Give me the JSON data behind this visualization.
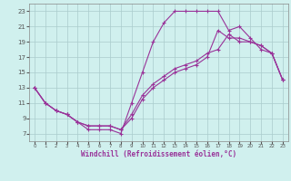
{
  "xlabel": "Windchill (Refroidissement éolien,°C)",
  "xlim": [
    -0.5,
    23.5
  ],
  "ylim": [
    6,
    24
  ],
  "yticks": [
    7,
    9,
    11,
    13,
    15,
    17,
    19,
    21,
    23
  ],
  "xticks": [
    0,
    1,
    2,
    3,
    4,
    5,
    6,
    7,
    8,
    9,
    10,
    11,
    12,
    13,
    14,
    15,
    16,
    17,
    18,
    19,
    20,
    21,
    22,
    23
  ],
  "line_color": "#993399",
  "bg_color": "#d0f0ee",
  "grid_color": "#aacccc",
  "line1_x": [
    0,
    1,
    2,
    3,
    4,
    5,
    6,
    7,
    8,
    9,
    10,
    11,
    12,
    13,
    14,
    15,
    16,
    17,
    18,
    19,
    20,
    21,
    22,
    23
  ],
  "line1_y": [
    13.0,
    11.0,
    10.0,
    9.5,
    8.5,
    7.5,
    7.5,
    7.5,
    7.0,
    11.0,
    15.0,
    19.0,
    21.5,
    23.0,
    23.0,
    23.0,
    23.0,
    23.0,
    20.5,
    21.0,
    19.5,
    18.0,
    17.5,
    14.0
  ],
  "line2_x": [
    0,
    1,
    2,
    3,
    4,
    5,
    6,
    7,
    8,
    9,
    10,
    11,
    12,
    13,
    14,
    15,
    16,
    17,
    18,
    19,
    20,
    21,
    22,
    23
  ],
  "line2_y": [
    13.0,
    11.0,
    10.0,
    9.5,
    8.5,
    8.0,
    8.0,
    8.0,
    7.5,
    9.0,
    11.5,
    13.0,
    14.0,
    15.0,
    15.5,
    16.0,
    17.0,
    20.5,
    19.5,
    19.5,
    19.0,
    18.5,
    17.5,
    14.0
  ],
  "line3_x": [
    0,
    1,
    2,
    3,
    4,
    5,
    6,
    7,
    8,
    9,
    10,
    11,
    12,
    13,
    14,
    15,
    16,
    17,
    18,
    19,
    20,
    21,
    22,
    23
  ],
  "line3_y": [
    13.0,
    11.0,
    10.0,
    9.5,
    8.5,
    8.0,
    8.0,
    8.0,
    7.5,
    9.5,
    12.0,
    13.5,
    14.5,
    15.5,
    16.0,
    16.5,
    17.5,
    18.0,
    20.0,
    19.0,
    19.0,
    18.5,
    17.5,
    14.0
  ]
}
